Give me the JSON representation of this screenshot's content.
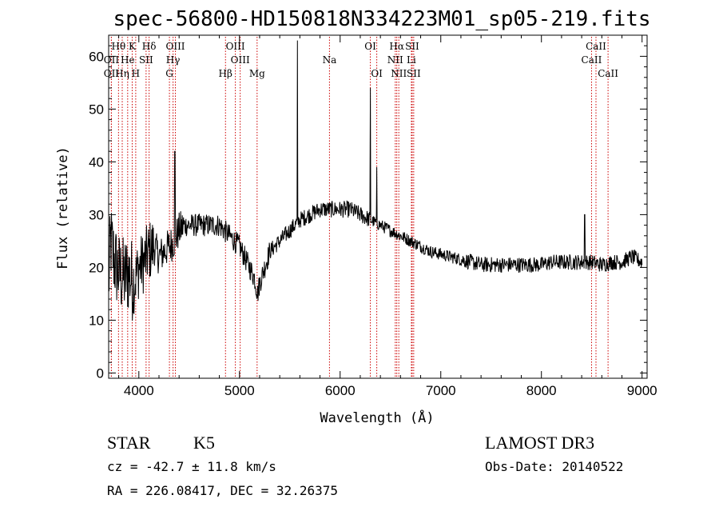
{
  "chart_data": {
    "type": "line",
    "title": "spec-56800-HD150818N334223M01_sp05-219.fits",
    "xlabel": "Wavelength (Å)",
    "ylabel": "Flux (relative)",
    "xlim": [
      3700,
      9050
    ],
    "ylim": [
      -1,
      64
    ],
    "xticks": [
      4000,
      5000,
      6000,
      7000,
      8000,
      9000
    ],
    "yticks": [
      0,
      10,
      20,
      30,
      40,
      50,
      60
    ],
    "grid": false,
    "line_color": "#000000",
    "marker_color": "#cc0000",
    "spectrum_anchors": [
      [
        3700,
        17
      ],
      [
        3720,
        25
      ],
      [
        3760,
        21
      ],
      [
        3800,
        19
      ],
      [
        3850,
        18
      ],
      [
        3900,
        19
      ],
      [
        3950,
        17
      ],
      [
        4000,
        20
      ],
      [
        4050,
        21
      ],
      [
        4100,
        23
      ],
      [
        4150,
        24
      ],
      [
        4200,
        22
      ],
      [
        4250,
        23
      ],
      [
        4300,
        24
      ],
      [
        4350,
        25
      ],
      [
        4400,
        27
      ],
      [
        4450,
        28
      ],
      [
        4500,
        28
      ],
      [
        4600,
        28
      ],
      [
        4700,
        28
      ],
      [
        4800,
        28
      ],
      [
        4850,
        27
      ],
      [
        4900,
        26
      ],
      [
        4950,
        25
      ],
      [
        5000,
        24
      ],
      [
        5050,
        22
      ],
      [
        5100,
        20
      ],
      [
        5150,
        18
      ],
      [
        5180,
        15
      ],
      [
        5200,
        17
      ],
      [
        5250,
        20
      ],
      [
        5300,
        23
      ],
      [
        5400,
        25
      ],
      [
        5500,
        27
      ],
      [
        5600,
        29
      ],
      [
        5700,
        30
      ],
      [
        5800,
        31
      ],
      [
        5900,
        31
      ],
      [
        6000,
        31
      ],
      [
        6100,
        31
      ],
      [
        6200,
        30
      ],
      [
        6300,
        29
      ],
      [
        6400,
        28
      ],
      [
        6500,
        27
      ],
      [
        6600,
        26
      ],
      [
        6700,
        25
      ],
      [
        6800,
        24
      ],
      [
        6900,
        23
      ],
      [
        7000,
        22.5
      ],
      [
        7100,
        22
      ],
      [
        7200,
        21.5
      ],
      [
        7300,
        21
      ],
      [
        7400,
        20.5
      ],
      [
        7500,
        20.5
      ],
      [
        7600,
        20.5
      ],
      [
        7700,
        20.5
      ],
      [
        7800,
        20.5
      ],
      [
        7900,
        20.5
      ],
      [
        8000,
        20.5
      ],
      [
        8100,
        21
      ],
      [
        8200,
        21
      ],
      [
        8300,
        21
      ],
      [
        8400,
        21
      ],
      [
        8500,
        21
      ],
      [
        8600,
        20.5
      ],
      [
        8700,
        21
      ],
      [
        8800,
        21
      ],
      [
        8900,
        22
      ],
      [
        9000,
        21
      ]
    ],
    "emission_spikes": [
      {
        "x": 5577,
        "y": 63
      },
      {
        "x": 6300,
        "y": 54
      },
      {
        "x": 6364,
        "y": 39
      },
      {
        "x": 4358,
        "y": 42
      },
      {
        "x": 8430,
        "y": 30
      }
    ],
    "spectral_lines": [
      {
        "label": "Hθ",
        "x": 3798,
        "row": 0
      },
      {
        "label": "OII",
        "x": 3727,
        "row": 1
      },
      {
        "label": "OII",
        "x": 3727,
        "row": 2
      },
      {
        "label": "K",
        "x": 3934,
        "row": 0
      },
      {
        "label": "He",
        "x": 3889,
        "row": 1
      },
      {
        "label": "Hη",
        "x": 3835,
        "row": 2
      },
      {
        "label": "Hδ",
        "x": 4102,
        "row": 0
      },
      {
        "label": "SII",
        "x": 4072,
        "row": 1
      },
      {
        "label": "H",
        "x": 3969,
        "row": 2
      },
      {
        "label": "OIII",
        "x": 4363,
        "row": 0
      },
      {
        "label": "Hγ",
        "x": 4340,
        "row": 1
      },
      {
        "label": "G",
        "x": 4304,
        "row": 2
      },
      {
        "label": "OIII",
        "x": 4959,
        "row": 0
      },
      {
        "label": "OIII",
        "x": 5007,
        "row": 1
      },
      {
        "label": "Hβ",
        "x": 4861,
        "row": 2
      },
      {
        "label": "Mg",
        "x": 5175,
        "row": 2
      },
      {
        "label": "Na",
        "x": 5894,
        "row": 1
      },
      {
        "label": "OI",
        "x": 6300,
        "row": 0
      },
      {
        "label": "OI",
        "x": 6364,
        "row": 2
      },
      {
        "label": "Hα",
        "x": 6563,
        "row": 0
      },
      {
        "label": "SII",
        "x": 6716,
        "row": 0
      },
      {
        "label": "NII",
        "x": 6548,
        "row": 1
      },
      {
        "label": "Li",
        "x": 6708,
        "row": 1
      },
      {
        "label": "NII",
        "x": 6583,
        "row": 2
      },
      {
        "label": "SII",
        "x": 6731,
        "row": 2
      },
      {
        "label": "CaII",
        "x": 8542,
        "row": 0
      },
      {
        "label": "CaII",
        "x": 8498,
        "row": 1
      },
      {
        "label": "CaII",
        "x": 8662,
        "row": 2
      }
    ]
  },
  "info": {
    "star_label": "STAR",
    "subclass": "K5",
    "survey": "LAMOST DR3",
    "cz": "cz = -42.7 ± 11.8 km/s",
    "obs_date": "Obs-Date: 20140522",
    "coords": "RA = 226.08417, DEC =  32.26375"
  }
}
